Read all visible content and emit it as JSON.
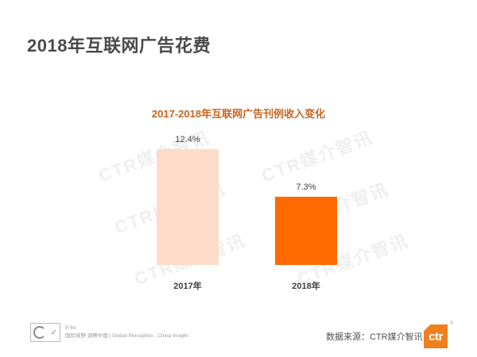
{
  "page": {
    "title": "2018年互联网广告花费",
    "page_number": "P 64",
    "tagline": "国际视野  洞察中国 | Global Perception , China Insight",
    "source": "数据来源：CTR媒介智讯",
    "logo_text": "ctr",
    "logo_reg": "®",
    "watermark": "CTR媒介智讯",
    "colors": {
      "title": "#4a4a4a",
      "chart_title": "#c8641e",
      "bar_2017": "#fcdcc8",
      "bar_2018": "#ff6a00",
      "logo": "#f07f1e"
    }
  },
  "chart_data": {
    "type": "bar",
    "title": "2017-2018年互联网广告刊例收入变化",
    "categories": [
      "2017年",
      "2018年"
    ],
    "values": [
      12.4,
      7.3
    ],
    "value_labels": [
      "12.4%",
      "7.3%"
    ],
    "unit": "%",
    "xlabel": "",
    "ylabel": "",
    "ylim": [
      0,
      12.4
    ],
    "grid": false,
    "legend": null
  }
}
